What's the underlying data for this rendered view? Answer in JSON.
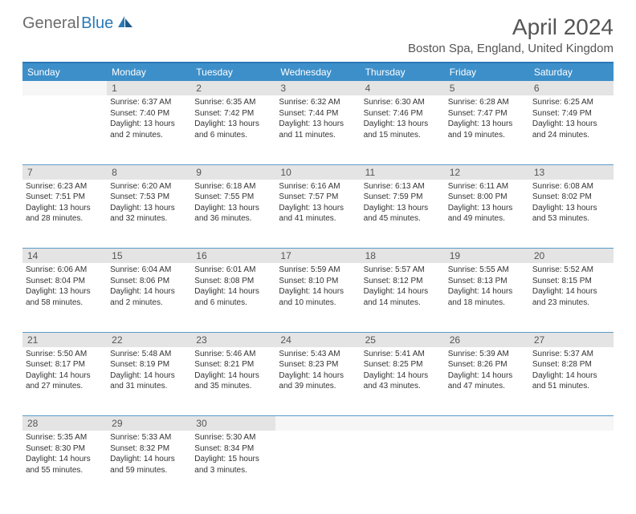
{
  "logo": {
    "part1": "General",
    "part2": "Blue"
  },
  "title": "April 2024",
  "location": "Boston Spa, England, United Kingdom",
  "dow": [
    "Sunday",
    "Monday",
    "Tuesday",
    "Wednesday",
    "Thursday",
    "Friday",
    "Saturday"
  ],
  "colors": {
    "header_bg": "#3d8fc9",
    "border": "#5a9bc9",
    "daynum_bg": "#e4e4e4",
    "text": "#333333"
  },
  "weeks": [
    [
      {
        "n": "",
        "lines": []
      },
      {
        "n": "1",
        "lines": [
          "Sunrise: 6:37 AM",
          "Sunset: 7:40 PM",
          "Daylight: 13 hours",
          "and 2 minutes."
        ]
      },
      {
        "n": "2",
        "lines": [
          "Sunrise: 6:35 AM",
          "Sunset: 7:42 PM",
          "Daylight: 13 hours",
          "and 6 minutes."
        ]
      },
      {
        "n": "3",
        "lines": [
          "Sunrise: 6:32 AM",
          "Sunset: 7:44 PM",
          "Daylight: 13 hours",
          "and 11 minutes."
        ]
      },
      {
        "n": "4",
        "lines": [
          "Sunrise: 6:30 AM",
          "Sunset: 7:46 PM",
          "Daylight: 13 hours",
          "and 15 minutes."
        ]
      },
      {
        "n": "5",
        "lines": [
          "Sunrise: 6:28 AM",
          "Sunset: 7:47 PM",
          "Daylight: 13 hours",
          "and 19 minutes."
        ]
      },
      {
        "n": "6",
        "lines": [
          "Sunrise: 6:25 AM",
          "Sunset: 7:49 PM",
          "Daylight: 13 hours",
          "and 24 minutes."
        ]
      }
    ],
    [
      {
        "n": "7",
        "lines": [
          "Sunrise: 6:23 AM",
          "Sunset: 7:51 PM",
          "Daylight: 13 hours",
          "and 28 minutes."
        ]
      },
      {
        "n": "8",
        "lines": [
          "Sunrise: 6:20 AM",
          "Sunset: 7:53 PM",
          "Daylight: 13 hours",
          "and 32 minutes."
        ]
      },
      {
        "n": "9",
        "lines": [
          "Sunrise: 6:18 AM",
          "Sunset: 7:55 PM",
          "Daylight: 13 hours",
          "and 36 minutes."
        ]
      },
      {
        "n": "10",
        "lines": [
          "Sunrise: 6:16 AM",
          "Sunset: 7:57 PM",
          "Daylight: 13 hours",
          "and 41 minutes."
        ]
      },
      {
        "n": "11",
        "lines": [
          "Sunrise: 6:13 AM",
          "Sunset: 7:59 PM",
          "Daylight: 13 hours",
          "and 45 minutes."
        ]
      },
      {
        "n": "12",
        "lines": [
          "Sunrise: 6:11 AM",
          "Sunset: 8:00 PM",
          "Daylight: 13 hours",
          "and 49 minutes."
        ]
      },
      {
        "n": "13",
        "lines": [
          "Sunrise: 6:08 AM",
          "Sunset: 8:02 PM",
          "Daylight: 13 hours",
          "and 53 minutes."
        ]
      }
    ],
    [
      {
        "n": "14",
        "lines": [
          "Sunrise: 6:06 AM",
          "Sunset: 8:04 PM",
          "Daylight: 13 hours",
          "and 58 minutes."
        ]
      },
      {
        "n": "15",
        "lines": [
          "Sunrise: 6:04 AM",
          "Sunset: 8:06 PM",
          "Daylight: 14 hours",
          "and 2 minutes."
        ]
      },
      {
        "n": "16",
        "lines": [
          "Sunrise: 6:01 AM",
          "Sunset: 8:08 PM",
          "Daylight: 14 hours",
          "and 6 minutes."
        ]
      },
      {
        "n": "17",
        "lines": [
          "Sunrise: 5:59 AM",
          "Sunset: 8:10 PM",
          "Daylight: 14 hours",
          "and 10 minutes."
        ]
      },
      {
        "n": "18",
        "lines": [
          "Sunrise: 5:57 AM",
          "Sunset: 8:12 PM",
          "Daylight: 14 hours",
          "and 14 minutes."
        ]
      },
      {
        "n": "19",
        "lines": [
          "Sunrise: 5:55 AM",
          "Sunset: 8:13 PM",
          "Daylight: 14 hours",
          "and 18 minutes."
        ]
      },
      {
        "n": "20",
        "lines": [
          "Sunrise: 5:52 AM",
          "Sunset: 8:15 PM",
          "Daylight: 14 hours",
          "and 23 minutes."
        ]
      }
    ],
    [
      {
        "n": "21",
        "lines": [
          "Sunrise: 5:50 AM",
          "Sunset: 8:17 PM",
          "Daylight: 14 hours",
          "and 27 minutes."
        ]
      },
      {
        "n": "22",
        "lines": [
          "Sunrise: 5:48 AM",
          "Sunset: 8:19 PM",
          "Daylight: 14 hours",
          "and 31 minutes."
        ]
      },
      {
        "n": "23",
        "lines": [
          "Sunrise: 5:46 AM",
          "Sunset: 8:21 PM",
          "Daylight: 14 hours",
          "and 35 minutes."
        ]
      },
      {
        "n": "24",
        "lines": [
          "Sunrise: 5:43 AM",
          "Sunset: 8:23 PM",
          "Daylight: 14 hours",
          "and 39 minutes."
        ]
      },
      {
        "n": "25",
        "lines": [
          "Sunrise: 5:41 AM",
          "Sunset: 8:25 PM",
          "Daylight: 14 hours",
          "and 43 minutes."
        ]
      },
      {
        "n": "26",
        "lines": [
          "Sunrise: 5:39 AM",
          "Sunset: 8:26 PM",
          "Daylight: 14 hours",
          "and 47 minutes."
        ]
      },
      {
        "n": "27",
        "lines": [
          "Sunrise: 5:37 AM",
          "Sunset: 8:28 PM",
          "Daylight: 14 hours",
          "and 51 minutes."
        ]
      }
    ],
    [
      {
        "n": "28",
        "lines": [
          "Sunrise: 5:35 AM",
          "Sunset: 8:30 PM",
          "Daylight: 14 hours",
          "and 55 minutes."
        ]
      },
      {
        "n": "29",
        "lines": [
          "Sunrise: 5:33 AM",
          "Sunset: 8:32 PM",
          "Daylight: 14 hours",
          "and 59 minutes."
        ]
      },
      {
        "n": "30",
        "lines": [
          "Sunrise: 5:30 AM",
          "Sunset: 8:34 PM",
          "Daylight: 15 hours",
          "and 3 minutes."
        ]
      },
      {
        "n": "",
        "lines": []
      },
      {
        "n": "",
        "lines": []
      },
      {
        "n": "",
        "lines": []
      },
      {
        "n": "",
        "lines": []
      }
    ]
  ]
}
